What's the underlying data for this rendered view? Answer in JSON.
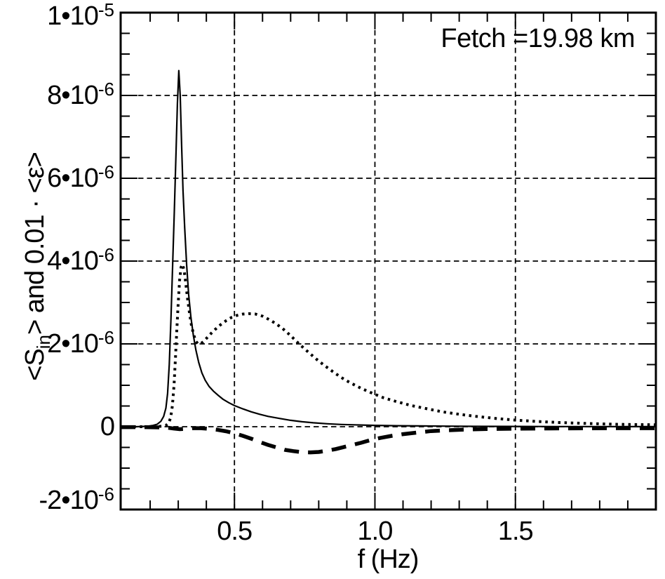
{
  "figure": {
    "background": "#ffffff",
    "ink": "#000000"
  },
  "annotation": {
    "text": "Fetch =19.98 km"
  },
  "x_axis": {
    "label": "f (Hz)",
    "ticks": [
      {
        "value": 0.5,
        "label": "0.5"
      },
      {
        "value": 1.0,
        "label": "1.0"
      },
      {
        "value": 1.5,
        "label": "1.5"
      }
    ],
    "minor_ticks": [
      0.2,
      0.3,
      0.4,
      0.6,
      0.7,
      0.8,
      0.9,
      1.1,
      1.2,
      1.3,
      1.4,
      1.6,
      1.7,
      1.8,
      1.9
    ]
  },
  "y_axis": {
    "label_parts": [
      {
        "t": "<S"
      },
      {
        "t": "in",
        "sub": true
      },
      {
        "t": "> and 0.01 · <ε>"
      }
    ],
    "ticks": [
      {
        "value": 10,
        "mantissa": "1•10",
        "exponent": "-5"
      },
      {
        "value": 8,
        "mantissa": "8•10",
        "exponent": "-6"
      },
      {
        "value": 6,
        "mantissa": "6•10",
        "exponent": "-6"
      },
      {
        "value": 4,
        "mantissa": "4•10",
        "exponent": "-6"
      },
      {
        "value": 2,
        "mantissa": "2•10",
        "exponent": "-6"
      },
      {
        "value": 0,
        "mantissa": "0",
        "exponent": ""
      },
      {
        "value": -2,
        "mantissa": "-2•10",
        "exponent": "-6"
      }
    ],
    "minor_ticks": [
      -1.5,
      -1,
      -0.5,
      0.5,
      1,
      1.5,
      2.5,
      3,
      3.5,
      4.5,
      5,
      5.5,
      6.5,
      7,
      7.5,
      8.5,
      9,
      9.5
    ]
  },
  "chart_data": {
    "type": "line",
    "title": "",
    "xlabel": "f (Hz)",
    "ylabel": "<S_in> and 0.01 · <ε>",
    "annotation": "Fetch =19.98 km",
    "y_values_unit": "1e-6",
    "xlim": [
      0.095,
      2.0
    ],
    "ylim": [
      -2,
      10
    ],
    "x_gridlines": [
      0.5,
      1.0,
      1.5
    ],
    "y_gridlines": [
      0,
      2,
      4,
      6,
      8
    ],
    "grid_style": "dashed",
    "legend": "none",
    "series": [
      {
        "name": "solid-curve",
        "style": "solid",
        "points": [
          [
            0.095,
            0
          ],
          [
            0.15,
            0
          ],
          [
            0.19,
            0.01
          ],
          [
            0.21,
            0.03
          ],
          [
            0.225,
            0.06
          ],
          [
            0.238,
            0.13
          ],
          [
            0.248,
            0.25
          ],
          [
            0.256,
            0.45
          ],
          [
            0.262,
            0.8
          ],
          [
            0.268,
            1.5
          ],
          [
            0.274,
            2.6
          ],
          [
            0.28,
            3.9
          ],
          [
            0.286,
            5.2
          ],
          [
            0.292,
            6.6
          ],
          [
            0.297,
            7.8
          ],
          [
            0.302,
            8.6
          ],
          [
            0.307,
            8.0
          ],
          [
            0.312,
            6.8
          ],
          [
            0.317,
            5.7
          ],
          [
            0.323,
            4.8
          ],
          [
            0.33,
            3.9
          ],
          [
            0.337,
            3.2
          ],
          [
            0.345,
            2.65
          ],
          [
            0.354,
            2.2
          ],
          [
            0.363,
            1.85
          ],
          [
            0.373,
            1.55
          ],
          [
            0.384,
            1.3
          ],
          [
            0.396,
            1.12
          ],
          [
            0.41,
            0.97
          ],
          [
            0.425,
            0.86
          ],
          [
            0.44,
            0.77
          ],
          [
            0.46,
            0.66
          ],
          [
            0.48,
            0.58
          ],
          [
            0.5,
            0.51
          ],
          [
            0.53,
            0.43
          ],
          [
            0.56,
            0.36
          ],
          [
            0.59,
            0.3
          ],
          [
            0.62,
            0.25
          ],
          [
            0.66,
            0.2
          ],
          [
            0.7,
            0.155
          ],
          [
            0.74,
            0.12
          ],
          [
            0.78,
            0.095
          ],
          [
            0.83,
            0.072
          ],
          [
            0.88,
            0.055
          ],
          [
            0.94,
            0.042
          ],
          [
            1.0,
            0.033
          ],
          [
            1.08,
            0.024
          ],
          [
            1.16,
            0.018
          ],
          [
            1.25,
            0.013
          ],
          [
            1.35,
            0.009
          ],
          [
            1.5,
            0.006
          ],
          [
            1.65,
            0.004
          ],
          [
            1.8,
            0.003
          ],
          [
            2.0,
            0.002
          ]
        ]
      },
      {
        "name": "dotted-curve",
        "style": "dotted",
        "points": [
          [
            0.095,
            0
          ],
          [
            0.2,
            0
          ],
          [
            0.24,
            0.01
          ],
          [
            0.256,
            0.03
          ],
          [
            0.266,
            0.09
          ],
          [
            0.273,
            0.22
          ],
          [
            0.279,
            0.5
          ],
          [
            0.285,
            1.0
          ],
          [
            0.29,
            1.65
          ],
          [
            0.295,
            2.35
          ],
          [
            0.3,
            3.0
          ],
          [
            0.305,
            3.55
          ],
          [
            0.31,
            3.85
          ],
          [
            0.315,
            3.92
          ],
          [
            0.321,
            3.78
          ],
          [
            0.327,
            3.45
          ],
          [
            0.333,
            3.1
          ],
          [
            0.34,
            2.75
          ],
          [
            0.347,
            2.45
          ],
          [
            0.355,
            2.22
          ],
          [
            0.363,
            2.06
          ],
          [
            0.371,
            2.0
          ],
          [
            0.38,
            2.0
          ],
          [
            0.39,
            2.06
          ],
          [
            0.4,
            2.13
          ],
          [
            0.415,
            2.24
          ],
          [
            0.43,
            2.34
          ],
          [
            0.45,
            2.46
          ],
          [
            0.47,
            2.56
          ],
          [
            0.49,
            2.64
          ],
          [
            0.51,
            2.69
          ],
          [
            0.53,
            2.72
          ],
          [
            0.55,
            2.73
          ],
          [
            0.575,
            2.72
          ],
          [
            0.6,
            2.67
          ],
          [
            0.62,
            2.6
          ],
          [
            0.645,
            2.5
          ],
          [
            0.67,
            2.38
          ],
          [
            0.7,
            2.2
          ],
          [
            0.73,
            2.0
          ],
          [
            0.76,
            1.82
          ],
          [
            0.79,
            1.64
          ],
          [
            0.82,
            1.48
          ],
          [
            0.85,
            1.33
          ],
          [
            0.88,
            1.19
          ],
          [
            0.91,
            1.07
          ],
          [
            0.95,
            0.93
          ],
          [
            0.99,
            0.81
          ],
          [
            1.03,
            0.7
          ],
          [
            1.08,
            0.6
          ],
          [
            1.13,
            0.51
          ],
          [
            1.18,
            0.44
          ],
          [
            1.24,
            0.36
          ],
          [
            1.3,
            0.3
          ],
          [
            1.36,
            0.25
          ],
          [
            1.43,
            0.2
          ],
          [
            1.5,
            0.16
          ],
          [
            1.58,
            0.125
          ],
          [
            1.66,
            0.1
          ],
          [
            1.75,
            0.08
          ],
          [
            1.85,
            0.06
          ],
          [
            2.0,
            0.045
          ]
        ]
      },
      {
        "name": "thick-dashed-curve",
        "style": "thick-dashed",
        "points": [
          [
            0.095,
            -0.01
          ],
          [
            0.2,
            -0.012
          ],
          [
            0.26,
            -0.02
          ],
          [
            0.285,
            -0.045
          ],
          [
            0.305,
            -0.06
          ],
          [
            0.325,
            -0.05
          ],
          [
            0.35,
            -0.035
          ],
          [
            0.38,
            -0.035
          ],
          [
            0.41,
            -0.05
          ],
          [
            0.44,
            -0.075
          ],
          [
            0.47,
            -0.11
          ],
          [
            0.5,
            -0.16
          ],
          [
            0.53,
            -0.22
          ],
          [
            0.56,
            -0.29
          ],
          [
            0.59,
            -0.37
          ],
          [
            0.62,
            -0.44
          ],
          [
            0.65,
            -0.5
          ],
          [
            0.68,
            -0.56
          ],
          [
            0.71,
            -0.59
          ],
          [
            0.74,
            -0.615
          ],
          [
            0.77,
            -0.62
          ],
          [
            0.8,
            -0.61
          ],
          [
            0.83,
            -0.58
          ],
          [
            0.86,
            -0.54
          ],
          [
            0.89,
            -0.49
          ],
          [
            0.92,
            -0.44
          ],
          [
            0.95,
            -0.39
          ],
          [
            0.98,
            -0.33
          ],
          [
            1.02,
            -0.27
          ],
          [
            1.06,
            -0.22
          ],
          [
            1.1,
            -0.18
          ],
          [
            1.15,
            -0.14
          ],
          [
            1.2,
            -0.105
          ],
          [
            1.26,
            -0.085
          ],
          [
            1.32,
            -0.07
          ],
          [
            1.4,
            -0.055
          ],
          [
            1.5,
            -0.048
          ],
          [
            1.62,
            -0.042
          ],
          [
            1.75,
            -0.038
          ],
          [
            2.0,
            -0.035
          ]
        ]
      }
    ]
  }
}
